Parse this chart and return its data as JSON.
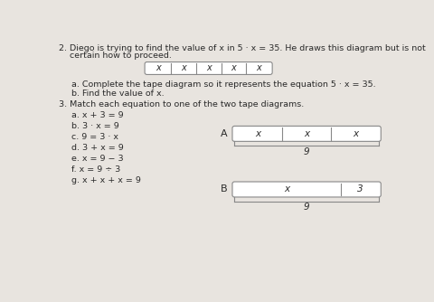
{
  "background_color": "#e8e4df",
  "paper_color": "#f5f2ee",
  "title_line1": "2. Diego is trying to find the value of x in 5 · x = 35. He draws this diagram but is not",
  "title_line2": "    certain how to proceed.",
  "tape1_cells": [
    "x",
    "x",
    "x",
    "x",
    "x"
  ],
  "sub_a_text": "a. Complete the tape diagram so it represents the equation 5 · x = 35.",
  "sub_b_text": "b. Find the value of x.",
  "section3_text": "3. Match each equation to one of the two tape diagrams.",
  "equations": [
    "a. x + 3 = 9",
    "b. 3 · x = 9",
    "c. 9 = 3 · x",
    "d. 3 + x = 9",
    "e. x = 9 − 3",
    "f. x = 9 ÷ 3",
    "g. x + x + x = 9"
  ],
  "diagramA_cells": [
    "x",
    "x",
    "x"
  ],
  "diagramA_total": "9",
  "diagramB_cell_x": "x",
  "diagramB_cell_3": "3",
  "diagramB_total": "9",
  "label_A": "A",
  "label_B": "B"
}
